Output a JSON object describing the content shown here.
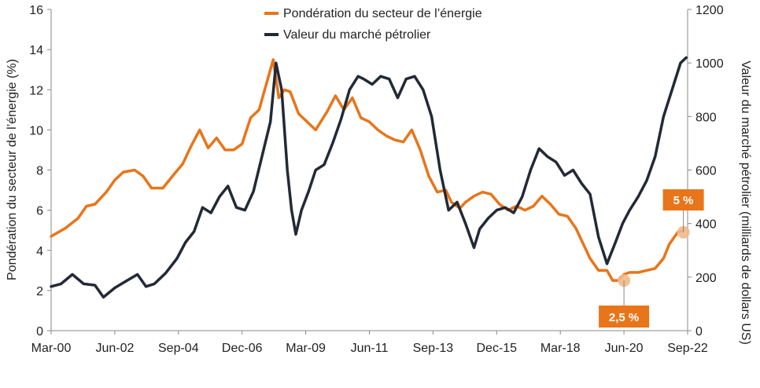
{
  "chart_data": {
    "type": "line",
    "legend": {
      "placement": "top-center",
      "items": [
        {
          "label": "Pondération du secteur de l’énergie",
          "color": "#E8751A"
        },
        {
          "label": "Valeur du marché pétrolier",
          "color": "#232A36"
        }
      ]
    },
    "xlabel": "",
    "x_ticks": [
      "Mar-00",
      "Jun-02",
      "Sep-04",
      "Dec-06",
      "Mar-09",
      "Jun-11",
      "Sep-13",
      "Dec-15",
      "Mar-18",
      "Jun-20",
      "Sep-22"
    ],
    "ylabel_left": "Pondération du secteur de l’énergie (%)",
    "ylim_left": [
      0,
      16
    ],
    "yticks_left": [
      "0",
      "2",
      "4",
      "6",
      "8",
      "10",
      "12",
      "14",
      "16"
    ],
    "ylabel_right": "Valeur du marché pétrolier (milliards de dollars US)",
    "ylim_right": [
      0,
      1200
    ],
    "yticks_right": [
      "0",
      "200",
      "400",
      "600",
      "800",
      "1000",
      "1200"
    ],
    "grid": false,
    "series": [
      {
        "name": "Pondération du secteur de l’énergie",
        "axis": "left",
        "color": "#E8751A",
        "x": [
          2000.25,
          2000.75,
          2001.2,
          2001.5,
          2001.8,
          2002.2,
          2002.5,
          2002.8,
          2003.2,
          2003.5,
          2003.8,
          2004.2,
          2004.6,
          2004.9,
          2005.2,
          2005.5,
          2005.8,
          2006.1,
          2006.4,
          2006.7,
          2007.0,
          2007.3,
          2007.6,
          2007.9,
          2008.1,
          2008.3,
          2008.5,
          2008.7,
          2009.0,
          2009.3,
          2009.6,
          2010.0,
          2010.3,
          2010.6,
          2010.9,
          2011.2,
          2011.5,
          2011.8,
          2012.1,
          2012.4,
          2012.7,
          2013.0,
          2013.3,
          2013.6,
          2013.9,
          2014.2,
          2014.4,
          2014.7,
          2014.9,
          2015.2,
          2015.5,
          2015.8,
          2016.1,
          2016.4,
          2016.7,
          2017.0,
          2017.3,
          2017.6,
          2017.9,
          2018.2,
          2018.5,
          2018.8,
          2019.0,
          2019.3,
          2019.6,
          2019.9,
          2020.1,
          2020.3,
          2020.5,
          2020.7,
          2021.0,
          2021.3,
          2021.6,
          2021.9,
          2022.1,
          2022.4,
          2022.6
        ],
        "values": [
          4.7,
          5.1,
          5.6,
          6.2,
          6.3,
          6.9,
          7.5,
          7.9,
          8.0,
          7.7,
          7.1,
          7.1,
          7.8,
          8.3,
          9.2,
          10.0,
          9.1,
          9.6,
          9.0,
          9.0,
          9.3,
          10.6,
          11.0,
          12.5,
          13.5,
          11.6,
          12.0,
          11.9,
          10.8,
          10.4,
          10.0,
          10.9,
          11.7,
          11.0,
          11.6,
          10.6,
          10.4,
          10.0,
          9.7,
          9.5,
          9.4,
          10.0,
          9.0,
          7.7,
          6.9,
          7.0,
          6.4,
          6.1,
          6.4,
          6.7,
          6.9,
          6.8,
          6.3,
          6.0,
          6.2,
          6.0,
          6.2,
          6.7,
          6.3,
          5.8,
          5.7,
          5.1,
          4.5,
          3.6,
          3.0,
          3.0,
          2.5,
          2.5,
          2.8,
          2.9,
          2.9,
          3.0,
          3.1,
          3.6,
          4.3,
          4.9,
          5.0
        ]
      },
      {
        "name": "Valeur du marché pétrolier",
        "axis": "right",
        "color": "#232A36",
        "x": [
          2000.25,
          2000.6,
          2001.0,
          2001.4,
          2001.8,
          2002.1,
          2002.5,
          2002.9,
          2003.3,
          2003.6,
          2003.9,
          2004.3,
          2004.7,
          2005.0,
          2005.3,
          2005.6,
          2005.9,
          2006.2,
          2006.5,
          2006.8,
          2007.1,
          2007.4,
          2007.7,
          2008.0,
          2008.2,
          2008.4,
          2008.6,
          2008.75,
          2008.9,
          2009.1,
          2009.35,
          2009.6,
          2009.9,
          2010.2,
          2010.5,
          2010.8,
          2011.1,
          2011.3,
          2011.6,
          2011.9,
          2012.2,
          2012.5,
          2012.8,
          2013.1,
          2013.4,
          2013.7,
          2014.0,
          2014.3,
          2014.6,
          2014.9,
          2015.2,
          2015.4,
          2015.7,
          2016.0,
          2016.3,
          2016.6,
          2016.9,
          2017.2,
          2017.5,
          2017.8,
          2018.1,
          2018.4,
          2018.7,
          2019.0,
          2019.3,
          2019.6,
          2019.9,
          2020.2,
          2020.45,
          2020.7,
          2021.0,
          2021.3,
          2021.6,
          2021.9,
          2022.2,
          2022.5,
          2022.7
        ],
        "values": [
          165,
          175,
          210,
          175,
          170,
          125,
          160,
          185,
          210,
          165,
          175,
          215,
          270,
          330,
          370,
          460,
          440,
          500,
          540,
          460,
          450,
          520,
          650,
          780,
          1000,
          900,
          600,
          450,
          360,
          450,
          520,
          600,
          620,
          700,
          790,
          900,
          950,
          940,
          920,
          950,
          940,
          870,
          940,
          950,
          900,
          800,
          600,
          450,
          480,
          400,
          310,
          380,
          420,
          450,
          460,
          440,
          500,
          600,
          680,
          650,
          630,
          580,
          600,
          550,
          510,
          350,
          250,
          330,
          400,
          450,
          500,
          560,
          650,
          800,
          900,
          1000,
          1020
        ]
      }
    ],
    "annotations": [
      {
        "label": "2,5 %",
        "series": "Pondération du secteur de l’énergie",
        "x": 2020.5,
        "y": 2.5
      },
      {
        "label": "5 %",
        "series": "Pondération du secteur de l’énergie",
        "x": 2022.6,
        "y": 4.9
      }
    ]
  }
}
